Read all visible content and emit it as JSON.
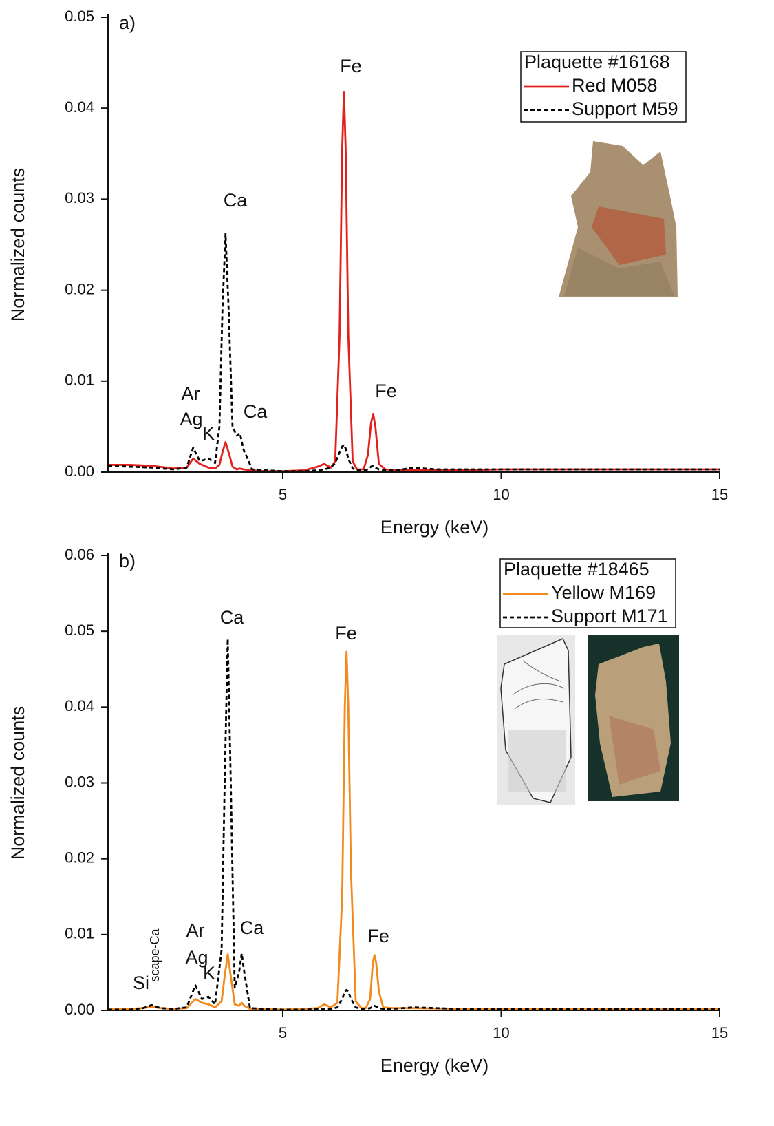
{
  "chart_data": [
    {
      "type": "line",
      "panel_label": "a)",
      "x_label": "Energy (keV)",
      "y_label": "Normalized counts",
      "legend_title": "Plaquette #16168",
      "xlim": [
        1,
        15
      ],
      "xticks": [
        5,
        10,
        15
      ],
      "ylim": [
        0,
        0.05
      ],
      "yticks": [
        {
          "value": 0,
          "label": "0.00"
        },
        0.01,
        0.02,
        0.03,
        0.04,
        0.05
      ],
      "x": [
        1,
        1.5,
        2,
        2.5,
        2.8,
        2.95,
        3.1,
        3.3,
        3.45,
        3.55,
        3.62,
        3.69,
        3.76,
        3.85,
        3.95,
        4.02,
        4.1,
        4.3,
        4.6,
        5,
        5.5,
        5.8,
        5.95,
        6.1,
        6.2,
        6.3,
        6.36,
        6.4,
        6.44,
        6.5,
        6.6,
        6.7,
        6.85,
        6.95,
        7.02,
        7.07,
        7.12,
        7.2,
        7.35,
        7.6,
        8,
        8.5,
        9,
        10,
        11,
        12,
        13,
        14,
        15
      ],
      "series": [
        {
          "name": "Red M058",
          "color": "#e3211c",
          "dashed": false,
          "values": [
            0.0008,
            0.0008,
            0.0007,
            0.0004,
            0.0005,
            0.0015,
            0.0009,
            0.0005,
            0.0004,
            0.0008,
            0.0022,
            0.0033,
            0.0022,
            0.0006,
            0.0003,
            0.0004,
            0.0003,
            0.0002,
            0.0001,
            0.0001,
            0.0002,
            0.0006,
            0.0009,
            0.0005,
            0.0012,
            0.015,
            0.0355,
            0.0418,
            0.0355,
            0.015,
            0.0012,
            0.0003,
            0.0003,
            0.0019,
            0.0054,
            0.0064,
            0.005,
            0.0009,
            0.0003,
            0.0002,
            0.0002,
            0.0002,
            0.0002,
            0.0003,
            0.0003,
            0.0003,
            0.0003,
            0.0003,
            0.0003
          ]
        },
        {
          "name": "Support M59",
          "color": "#000000",
          "dashed": true,
          "values": [
            0.0007,
            0.0006,
            0.0005,
            0.0003,
            0.0005,
            0.0027,
            0.0012,
            0.0015,
            0.001,
            0.005,
            0.018,
            0.0262,
            0.018,
            0.005,
            0.004,
            0.0043,
            0.0025,
            0.0003,
            0.0002,
            0.0001,
            0.0001,
            0.0002,
            0.0003,
            0.0005,
            0.001,
            0.0022,
            0.0028,
            0.003,
            0.0026,
            0.0015,
            0.0004,
            0.0002,
            0.0002,
            0.0003,
            0.0006,
            0.0007,
            0.0005,
            0.0003,
            0.0002,
            0.0002,
            0.0005,
            0.0003,
            0.0003,
            0.0003,
            0.0003,
            0.0003,
            0.0003,
            0.0003,
            0.0003
          ]
        }
      ],
      "annotations": [
        "Fe",
        "Ca",
        "Fe",
        "Ca",
        "Ar",
        "Ag",
        "K"
      ]
    },
    {
      "type": "line",
      "panel_label": "b)",
      "x_label": "Energy (keV)",
      "y_label": "Normalized counts",
      "legend_title": "Plaquette #18465",
      "xlim": [
        1,
        15
      ],
      "xticks": [
        5,
        10,
        15
      ],
      "ylim": [
        0,
        0.06
      ],
      "yticks": [
        {
          "value": 0,
          "label": "0.00"
        },
        0.01,
        0.02,
        0.03,
        0.04,
        0.05,
        0.06
      ],
      "x": [
        1,
        1.5,
        1.8,
        2.0,
        2.2,
        2.5,
        2.8,
        3.0,
        3.15,
        3.3,
        3.45,
        3.6,
        3.67,
        3.74,
        3.81,
        3.9,
        4.0,
        4.06,
        4.12,
        4.25,
        4.6,
        5,
        5.5,
        5.8,
        5.95,
        6.1,
        6.25,
        6.36,
        6.42,
        6.46,
        6.5,
        6.56,
        6.67,
        6.8,
        6.9,
        7.0,
        7.06,
        7.1,
        7.14,
        7.2,
        7.3,
        7.5,
        8,
        9,
        10,
        11,
        12,
        13,
        14,
        15
      ],
      "series": [
        {
          "name": "Yellow M169",
          "color": "#f28a1e",
          "dashed": false,
          "values": [
            0.0002,
            0.0002,
            0.0003,
            0.0005,
            0.0003,
            0.0002,
            0.0003,
            0.0015,
            0.001,
            0.0008,
            0.0004,
            0.0012,
            0.0045,
            0.0074,
            0.0045,
            0.0008,
            0.0006,
            0.001,
            0.0006,
            0.0002,
            0.0002,
            0.0001,
            0.0002,
            0.0003,
            0.0008,
            0.0004,
            0.001,
            0.015,
            0.04,
            0.0473,
            0.04,
            0.0185,
            0.0012,
            0.0003,
            0.0003,
            0.0015,
            0.0062,
            0.0073,
            0.0062,
            0.0025,
            0.0004,
            0.0003,
            0.0003,
            0.0002,
            0.0002,
            0.0002,
            0.0002,
            0.0002,
            0.0002,
            0.0002
          ]
        },
        {
          "name": "Support M171",
          "color": "#000000",
          "dashed": true,
          "values": [
            0.0001,
            0.0001,
            0.0003,
            0.0007,
            0.0003,
            0.0002,
            0.0004,
            0.0033,
            0.0015,
            0.0018,
            0.0008,
            0.008,
            0.03,
            0.049,
            0.03,
            0.003,
            0.005,
            0.0075,
            0.005,
            0.0003,
            0.0002,
            0.0001,
            0.0001,
            0.0002,
            0.0002,
            0.0002,
            0.0004,
            0.0015,
            0.0025,
            0.0027,
            0.0025,
            0.0015,
            0.0004,
            0.0002,
            0.0002,
            0.0003,
            0.0005,
            0.0006,
            0.0005,
            0.0003,
            0.0002,
            0.0002,
            0.0004,
            0.0002,
            0.0002,
            0.0002,
            0.0002,
            0.0002,
            0.0002,
            0.0002
          ]
        }
      ],
      "annotations": [
        "Ca",
        "Fe",
        "Ca",
        "Fe",
        "Ar",
        "Ag",
        "K",
        "Si",
        "scape-Ca"
      ]
    }
  ]
}
